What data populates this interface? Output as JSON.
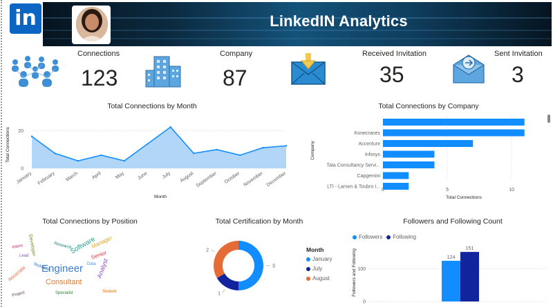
{
  "header": {
    "title": "LinkedIN Analytics",
    "logo_text": "in",
    "logo_icon": "linkedin-logo-icon",
    "brand_color": "#0a66c2"
  },
  "kpis": [
    {
      "label": "Connections",
      "value": "123",
      "icon": "people-network-icon"
    },
    {
      "label": "Company",
      "value": "87",
      "icon": "building-icon"
    },
    {
      "label": "Received Invitation",
      "value": "35",
      "icon": "inbox-download-icon"
    },
    {
      "label": "Sent Invitation",
      "value": "3",
      "icon": "mail-send-icon"
    }
  ],
  "charts": {
    "position_cloud": {
      "title": "Total Connections by Position",
      "words": [
        "Engineer",
        "Consultant",
        "Software",
        "Analyst",
        "Associate",
        "Senior",
        "Manager",
        "Developer",
        "Data",
        "Lead",
        "Intern",
        "Specialist",
        "Technical",
        "Student",
        "Research",
        "Project"
      ]
    },
    "certification": {
      "title": "Total Certification by Month",
      "legend_title": "Month"
    }
  },
  "chart_data": [
    {
      "type": "area",
      "title": "Total Connections by Month",
      "xlabel": "Month",
      "ylabel": "Total Connections",
      "categories": [
        "January",
        "February",
        "March",
        "April",
        "May",
        "June",
        "July",
        "August",
        "September",
        "October",
        "November",
        "December"
      ],
      "values": [
        17,
        8,
        4,
        7,
        4,
        13,
        22,
        8,
        10,
        7,
        11,
        12
      ],
      "ylim": [
        0,
        25
      ],
      "yticks": [
        "0",
        "20"
      ],
      "color": "#118dff"
    },
    {
      "type": "bar",
      "orientation": "horizontal",
      "title": "Total Connections by Company",
      "xlabel": "Total Connections",
      "ylabel": "Company",
      "categories": [
        "",
        "Konecranes",
        "Accenture",
        "Infosys",
        "Tata Consultancy Servi...",
        "Capgemini",
        "LTI - Larsen & Toubro I..."
      ],
      "values": [
        11,
        11,
        7,
        4,
        4,
        2,
        2
      ],
      "xlim": [
        0,
        11.5
      ],
      "xticks": [
        "0",
        "5",
        "10"
      ],
      "color": "#118dff"
    },
    {
      "type": "pie",
      "donut": true,
      "title": "Total Certification by Month",
      "categories": [
        "January",
        "July",
        "August"
      ],
      "values": [
        3,
        1,
        2
      ],
      "data_labels": [
        "3",
        "1",
        "2"
      ],
      "colors": [
        "#118dff",
        "#12239e",
        "#e66c37"
      ],
      "legend": "right"
    },
    {
      "type": "bar",
      "title": "Followers and Following Count",
      "ylabel": "Followers and Following",
      "categories": [
        ""
      ],
      "series": [
        {
          "name": "Followers",
          "values": [
            124
          ],
          "color": "#118dff"
        },
        {
          "name": "Following",
          "values": [
            151
          ],
          "color": "#12239e"
        }
      ],
      "data_labels": [
        "124",
        "151"
      ],
      "ylim": [
        0,
        185
      ],
      "yticks": [
        "0",
        "100"
      ],
      "legend": "top-left"
    }
  ]
}
